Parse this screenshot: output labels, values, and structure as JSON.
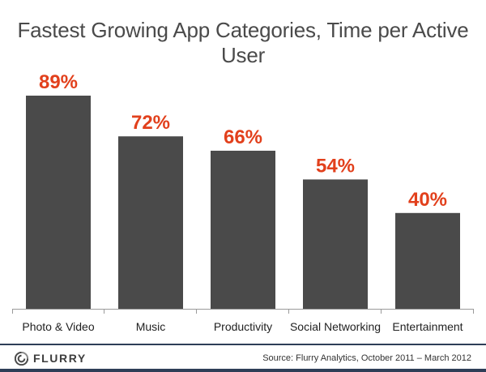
{
  "chart_data": {
    "type": "bar",
    "title": "Fastest Growing App Categories, Time per Active User",
    "categories": [
      "Photo & Video",
      "Music",
      "Productivity",
      "Social Networking",
      "Entertainment"
    ],
    "values": [
      89,
      72,
      66,
      54,
      40
    ],
    "value_labels": [
      "89%",
      "72%",
      "66%",
      "54%",
      "40%"
    ],
    "xlabel": "",
    "ylabel": "",
    "ylim": [
      0,
      100
    ],
    "grid": false,
    "bar_color": "#4a4a4a",
    "label_color": "#e2401c"
  },
  "footer": {
    "brand": "FLURRY",
    "brand_icon": "flurry-logo-icon",
    "source": "Source: Flurry Analytics, October 2011 – March 2012"
  }
}
